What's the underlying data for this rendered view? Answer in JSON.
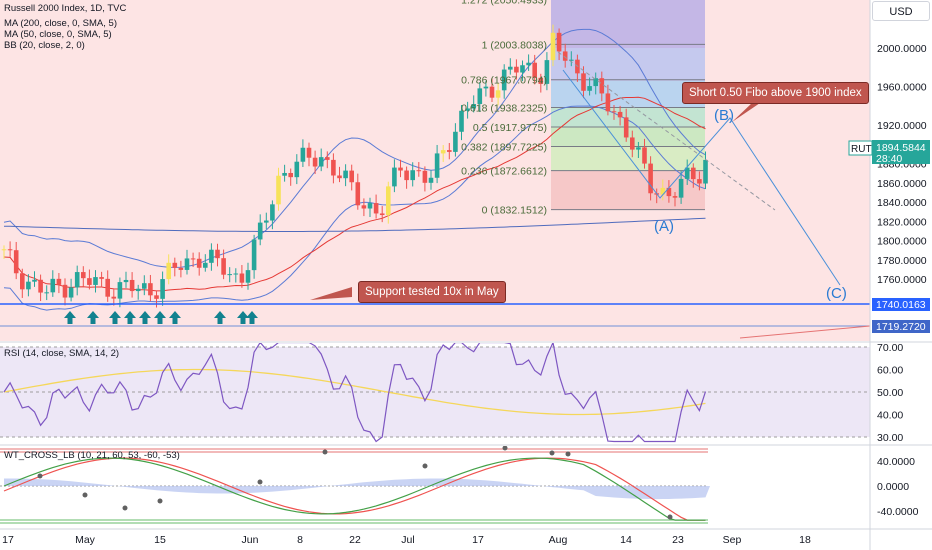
{
  "header": {
    "symbol_title": "Russell 2000 Index, 1D, TVC",
    "currency_button": "USD"
  },
  "indicators": {
    "ma200": "MA (200, close, 0, SMA, 5)",
    "ma50": "MA (50, close, 0, SMA, 5)",
    "bb": "BB (20, close, 2, 0)",
    "rsi": "RSI (14, close, SMA, 14, 2)",
    "wt": "WT_CROSS_LB (10, 21, 60, 53, -60, -53)"
  },
  "annotations": {
    "short_note": "Short 0.50 Fibo above 1900 index",
    "support_note": "Support tested 10x in May",
    "wave_a": "(A)",
    "wave_b": "(B)",
    "wave_c": "(C)"
  },
  "fib_levels": [
    {
      "label": "1.272 (2050.4933)",
      "price": 2050.4933
    },
    {
      "label": "1 (2003.8038)",
      "price": 2003.8038
    },
    {
      "label": "0.786 (1967.0794)",
      "price": 1967.0794
    },
    {
      "label": "0.618 (1938.2325)",
      "price": 1938.2325
    },
    {
      "label": "0.5 (1917.9775)",
      "price": 1917.9775
    },
    {
      "label": "0.382 (1897.7225)",
      "price": 1897.7225
    },
    {
      "label": "0.236 (1872.6612)",
      "price": 1872.6612
    },
    {
      "label": "0 (1832.1512)",
      "price": 1832.1512
    }
  ],
  "price_axis": {
    "ticks": [
      "2000.0000",
      "1960.0000",
      "1920.0000",
      "1880.0000",
      "1860.0000",
      "1840.0000",
      "1820.0000",
      "1800.0000",
      "1780.0000",
      "1760.0000"
    ],
    "tick_values": [
      2000,
      1960,
      1920,
      1880,
      1860,
      1840,
      1820,
      1800,
      1780,
      1760
    ],
    "ticker": "RUT",
    "last_price": "1894.5844",
    "countdown": "28:40",
    "support_label": "1740.0163",
    "support_value": 1740.0163,
    "lower_label": "1719.2720",
    "lower_value": 1719.272
  },
  "rsi_axis": {
    "ticks": [
      "70.00",
      "60.00",
      "50.00",
      "40.00",
      "30.00"
    ],
    "tick_values": [
      70,
      60,
      50,
      40,
      30
    ]
  },
  "wt_axis": {
    "ticks": [
      "40.0000",
      "0.0000",
      "-40.0000"
    ],
    "tick_values": [
      40,
      0,
      -40
    ]
  },
  "time_axis": {
    "labels": [
      "17",
      "May",
      "15",
      "Jun",
      "8",
      "22",
      "Jul",
      "17",
      "Aug",
      "14",
      "23",
      "Sep",
      "18"
    ]
  },
  "colors": {
    "up": "#26a69a",
    "down": "#ef5350",
    "up_alt": "#f7e25a",
    "fib_line": "#787b86",
    "support_line": "#2962ff",
    "bb_band": "#5b7bd5",
    "ma_red": "#e53935",
    "rsi_line": "#7e57c2",
    "rsi_ma": "#f5d75a",
    "arrow": "#12828f"
  }
}
